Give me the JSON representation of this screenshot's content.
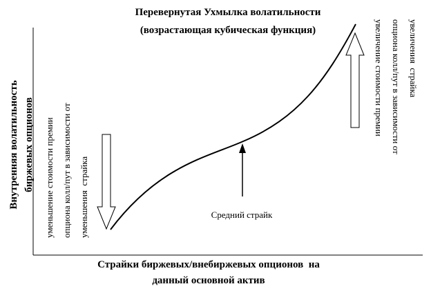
{
  "title": [
    "Перевернутая Ухмылка волатильности",
    "(возрастающая кубическая функция)"
  ],
  "y_axis_label": [
    "Внутренняя волатильность",
    "биржевых опционов"
  ],
  "x_axis_label": [
    "Страйки биржевых/внебиржевых опционов  на",
    "данный основной актив"
  ],
  "left_note": [
    "уменьшение стоимости премии",
    "опциона колл/пут в зависимости от",
    "уменьшения  страйка"
  ],
  "right_note": [
    "увеличение стоимости премии",
    "опциона колл/пут в зависимости от",
    "увеличения  страйка"
  ],
  "middle_label": "Средний страйк"
}
